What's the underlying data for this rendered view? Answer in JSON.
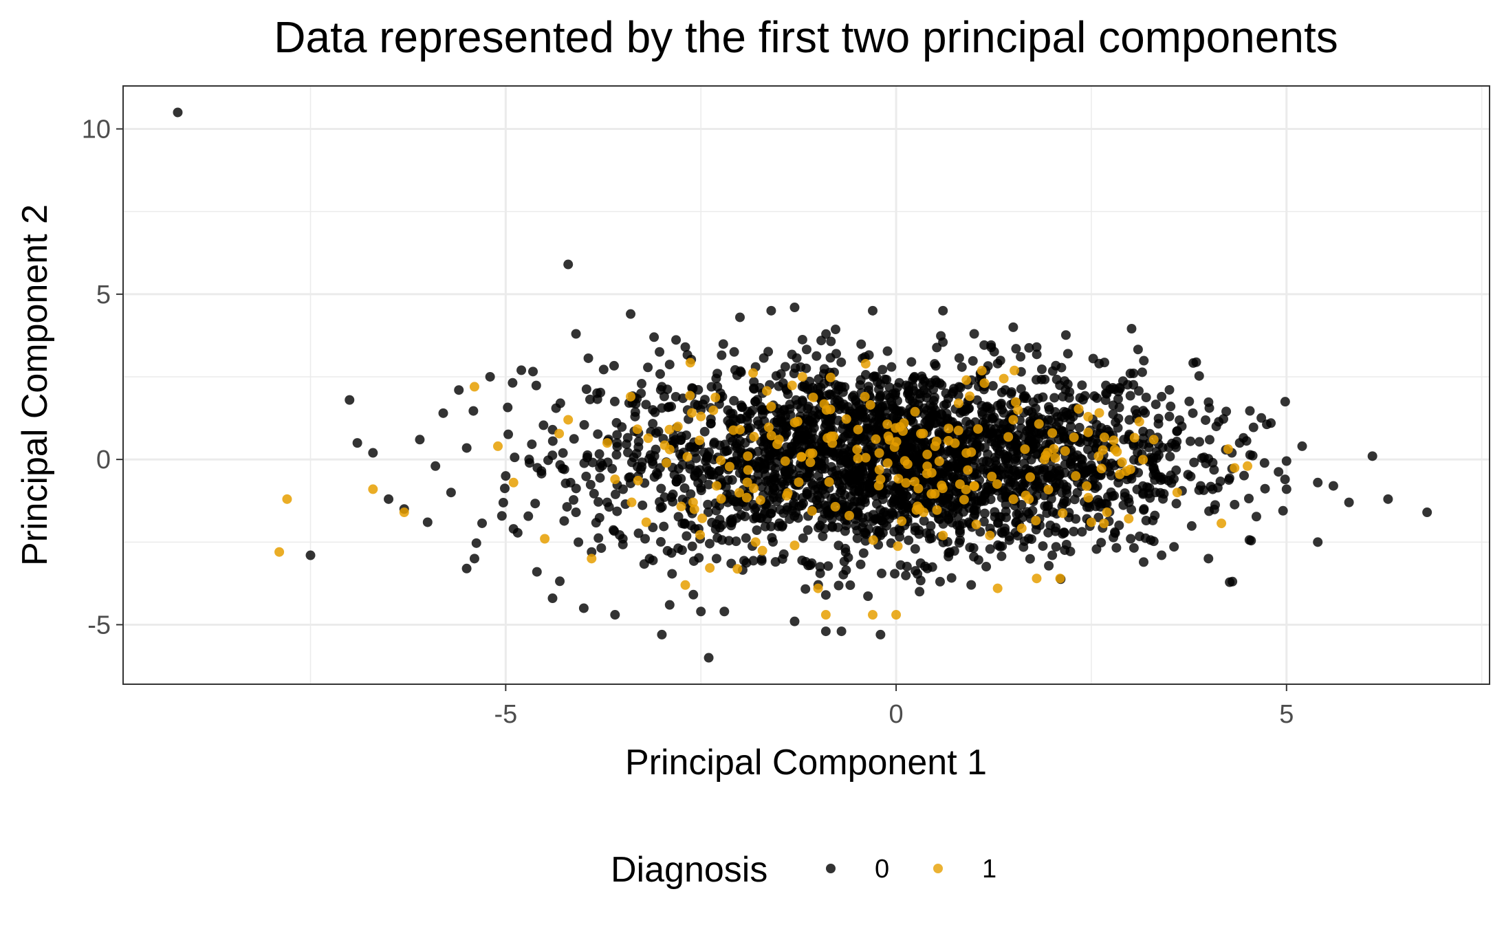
{
  "chart_data": {
    "type": "scatter",
    "title": "Data represented by the first two principal components",
    "xlabel": "Principal Component 1",
    "ylabel": "Principal Component 2",
    "xlim": [
      -9.9,
      7.6
    ],
    "ylim": [
      -6.8,
      11.3
    ],
    "x_ticks": [
      -5,
      0,
      5
    ],
    "y_ticks": [
      -5,
      0,
      5,
      10
    ],
    "x_tick_labels": [
      "-5",
      "0",
      "5"
    ],
    "y_tick_labels": [
      "-5",
      "0",
      "5",
      "10"
    ],
    "grid": true,
    "legend": {
      "title": "Diagnosis",
      "position": "bottom",
      "entries": [
        {
          "label": "0",
          "color": "#000000"
        },
        {
          "label": "1",
          "color": "#E69F00"
        }
      ]
    },
    "series": [
      {
        "color": "#000000",
        "points": [
          [
            -9.2,
            10.5
          ],
          [
            -4.2,
            5.9
          ],
          [
            -7.5,
            -2.9
          ],
          [
            -7.0,
            1.8
          ],
          [
            -6.9,
            0.5
          ],
          [
            -6.7,
            0.2
          ],
          [
            -6.5,
            -1.2
          ],
          [
            -6.3,
            -1.5
          ],
          [
            -6.1,
            0.6
          ],
          [
            -5.9,
            -0.2
          ],
          [
            -5.8,
            1.4
          ],
          [
            -5.6,
            2.1
          ],
          [
            -5.5,
            -3.3
          ],
          [
            -5.4,
            -3.0
          ],
          [
            -5.2,
            2.5
          ],
          [
            -5.0,
            -0.5
          ],
          [
            -4.9,
            -2.1
          ],
          [
            -4.8,
            2.7
          ],
          [
            -4.6,
            -3.4
          ],
          [
            -4.4,
            -4.2
          ],
          [
            -4.3,
            1.7
          ],
          [
            -4.1,
            3.8
          ],
          [
            -4.0,
            -4.5
          ],
          [
            -3.9,
            -2.8
          ],
          [
            -3.6,
            -4.7
          ],
          [
            -3.4,
            4.4
          ],
          [
            -3.1,
            3.7
          ],
          [
            -3.0,
            -5.3
          ],
          [
            -2.9,
            -4.4
          ],
          [
            -2.7,
            3.4
          ],
          [
            -2.4,
            -6.0
          ],
          [
            -2.5,
            -4.6
          ],
          [
            -2.2,
            -4.6
          ],
          [
            -2.0,
            4.3
          ],
          [
            -1.6,
            4.5
          ],
          [
            -1.3,
            4.6
          ],
          [
            -1.3,
            -4.9
          ],
          [
            -0.9,
            -5.2
          ],
          [
            -0.7,
            -5.2
          ],
          [
            -0.3,
            4.5
          ],
          [
            -0.2,
            -5.3
          ],
          [
            0.6,
            4.5
          ],
          [
            1.0,
            3.8
          ],
          [
            1.5,
            4.0
          ],
          [
            1.8,
            3.4
          ],
          [
            2.2,
            3.2
          ],
          [
            2.6,
            2.9
          ],
          [
            3.0,
            2.6
          ],
          [
            3.4,
            1.9
          ],
          [
            3.8,
            1.4
          ],
          [
            4.1,
            1.0
          ],
          [
            4.4,
            0.5
          ],
          [
            4.8,
            1.1
          ],
          [
            5.0,
            -0.9
          ],
          [
            5.2,
            0.4
          ],
          [
            5.4,
            -0.7
          ],
          [
            5.4,
            -2.5
          ],
          [
            5.6,
            -0.8
          ],
          [
            5.8,
            -1.3
          ],
          [
            6.1,
            0.1
          ],
          [
            6.3,
            -1.2
          ],
          [
            6.8,
            -1.6
          ],
          [
            4.0,
            -3.0
          ],
          [
            3.4,
            -2.9
          ],
          [
            -0.9,
            -4.1
          ],
          [
            0.3,
            -4.0
          ],
          [
            -6.0,
            -1.9
          ],
          [
            -5.7,
            -1.0
          ],
          [
            -4.7,
            0.0
          ],
          [
            -3.7,
            -1.3
          ],
          [
            -3.3,
            0.8
          ],
          [
            -2.8,
            -0.6
          ],
          [
            -2.5,
            1.5
          ],
          [
            -2.1,
            -1.9
          ],
          [
            -1.7,
            0.4
          ],
          [
            -1.4,
            2.1
          ],
          [
            -1.0,
            -0.9
          ],
          [
            -0.6,
            1.3
          ],
          [
            -0.2,
            -2.3
          ],
          [
            0.2,
            0.5
          ],
          [
            0.7,
            -1.4
          ],
          [
            1.1,
            2.3
          ],
          [
            1.5,
            -0.7
          ],
          [
            1.9,
            1.1
          ],
          [
            2.3,
            -1.8
          ],
          [
            2.7,
            0.9
          ],
          [
            3.1,
            -0.4
          ],
          [
            3.5,
            1.3
          ],
          [
            3.9,
            -0.8
          ],
          [
            4.3,
            0.2
          ],
          [
            -3.5,
            -2.4
          ],
          [
            -3.0,
            2.2
          ],
          [
            -2.3,
            -3.0
          ],
          [
            -1.8,
            2.8
          ],
          [
            -1.1,
            -3.2
          ],
          [
            -0.4,
            3.1
          ],
          [
            0.4,
            -3.3
          ],
          [
            1.3,
            2.9
          ],
          [
            2.0,
            -2.9
          ],
          [
            2.8,
            -2.2
          ],
          [
            -4.4,
            0.9
          ],
          [
            -4.1,
            -1.6
          ]
        ]
      },
      {
        "color": "#E69F00",
        "points": [
          [
            -7.8,
            -1.2
          ],
          [
            -7.9,
            -2.8
          ],
          [
            -6.7,
            -0.9
          ],
          [
            -6.3,
            -1.6
          ],
          [
            -5.4,
            2.2
          ],
          [
            -5.1,
            0.4
          ],
          [
            -4.9,
            -0.7
          ],
          [
            -4.5,
            -2.4
          ],
          [
            -4.2,
            1.2
          ],
          [
            -3.9,
            -3.0
          ],
          [
            -3.6,
            -0.6
          ],
          [
            -3.4,
            1.9
          ],
          [
            -3.2,
            -1.9
          ],
          [
            -2.9,
            0.3
          ],
          [
            -2.7,
            -3.8
          ],
          [
            -2.5,
            1.3
          ],
          [
            -2.3,
            -0.8
          ],
          [
            -2.0,
            0.9
          ],
          [
            -1.8,
            -2.5
          ],
          [
            -1.6,
            1.6
          ],
          [
            -1.4,
            -1.1
          ],
          [
            -1.2,
            2.5
          ],
          [
            -1.0,
            -3.9
          ],
          [
            -0.9,
            -4.7
          ],
          [
            -0.8,
            0.7
          ],
          [
            -0.6,
            -1.7
          ],
          [
            -0.4,
            1.9
          ],
          [
            -0.3,
            -4.7
          ],
          [
            -0.2,
            -0.6
          ],
          [
            0.0,
            -4.7
          ],
          [
            0.1,
            1.1
          ],
          [
            0.3,
            -1.5
          ],
          [
            0.5,
            0.4
          ],
          [
            0.8,
            1.7
          ],
          [
            1.0,
            -0.8
          ],
          [
            1.2,
            -2.3
          ],
          [
            1.3,
            -3.9
          ],
          [
            1.5,
            1.2
          ],
          [
            1.7,
            -1.2
          ],
          [
            1.8,
            -3.6
          ],
          [
            2.0,
            0.8
          ],
          [
            2.1,
            -3.6
          ],
          [
            2.3,
            -0.5
          ],
          [
            2.5,
            -1.9
          ],
          [
            2.8,
            0.3
          ],
          [
            3.0,
            -0.3
          ],
          [
            3.3,
            0.6
          ],
          [
            3.6,
            -1.0
          ],
          [
            4.5,
            -0.2
          ],
          [
            2.7,
            -1.6
          ],
          [
            -1.9,
            0.1
          ],
          [
            -0.5,
            0.3
          ],
          [
            0.6,
            -2.3
          ],
          [
            1.9,
            0.0
          ],
          [
            -2.6,
            -1.3
          ],
          [
            -3.7,
            0.5
          ],
          [
            -1.3,
            -2.6
          ],
          [
            0.9,
            2.4
          ],
          [
            -0.1,
            0.7
          ],
          [
            -1.5,
            0.6
          ]
        ]
      }
    ]
  }
}
